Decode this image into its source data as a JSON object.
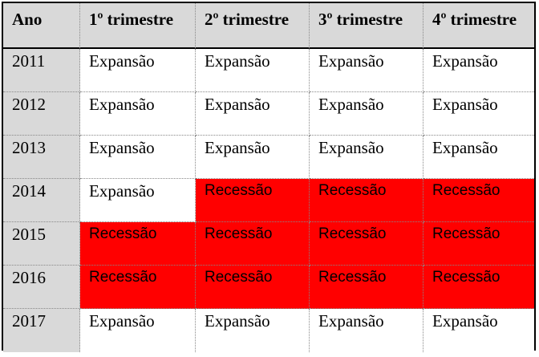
{
  "table": {
    "header": [
      "Ano",
      "1º trimestre",
      "2º trimestre",
      "3º trimestre",
      "4º trimestre"
    ],
    "rows": [
      {
        "year": "2011",
        "quarters": [
          "Expansão",
          "Expansão",
          "Expansão",
          "Expansão"
        ]
      },
      {
        "year": "2012",
        "quarters": [
          "Expansão",
          "Expansão",
          "Expansão",
          "Expansão"
        ]
      },
      {
        "year": "2013",
        "quarters": [
          "Expansão",
          "Expansão",
          "Expansão",
          "Expansão"
        ]
      },
      {
        "year": "2014",
        "quarters": [
          "Expansão",
          "Recessão",
          "Recessão",
          "Recessão"
        ]
      },
      {
        "year": "2015",
        "quarters": [
          "Recessão",
          "Recessão",
          "Recessão",
          "Recessão"
        ]
      },
      {
        "year": "2016",
        "quarters": [
          "Recessão",
          "Recessão",
          "Recessão",
          "Recessão"
        ]
      },
      {
        "year": "2017",
        "quarters": [
          "Expansão",
          "Expansão",
          "Expansão",
          "Expansão"
        ]
      }
    ]
  },
  "colors": {
    "header_background": "#d9d9d9",
    "year_background": "#d9d9d9",
    "recession_background": "#ff0000",
    "expansion_background": "#ffffff"
  }
}
